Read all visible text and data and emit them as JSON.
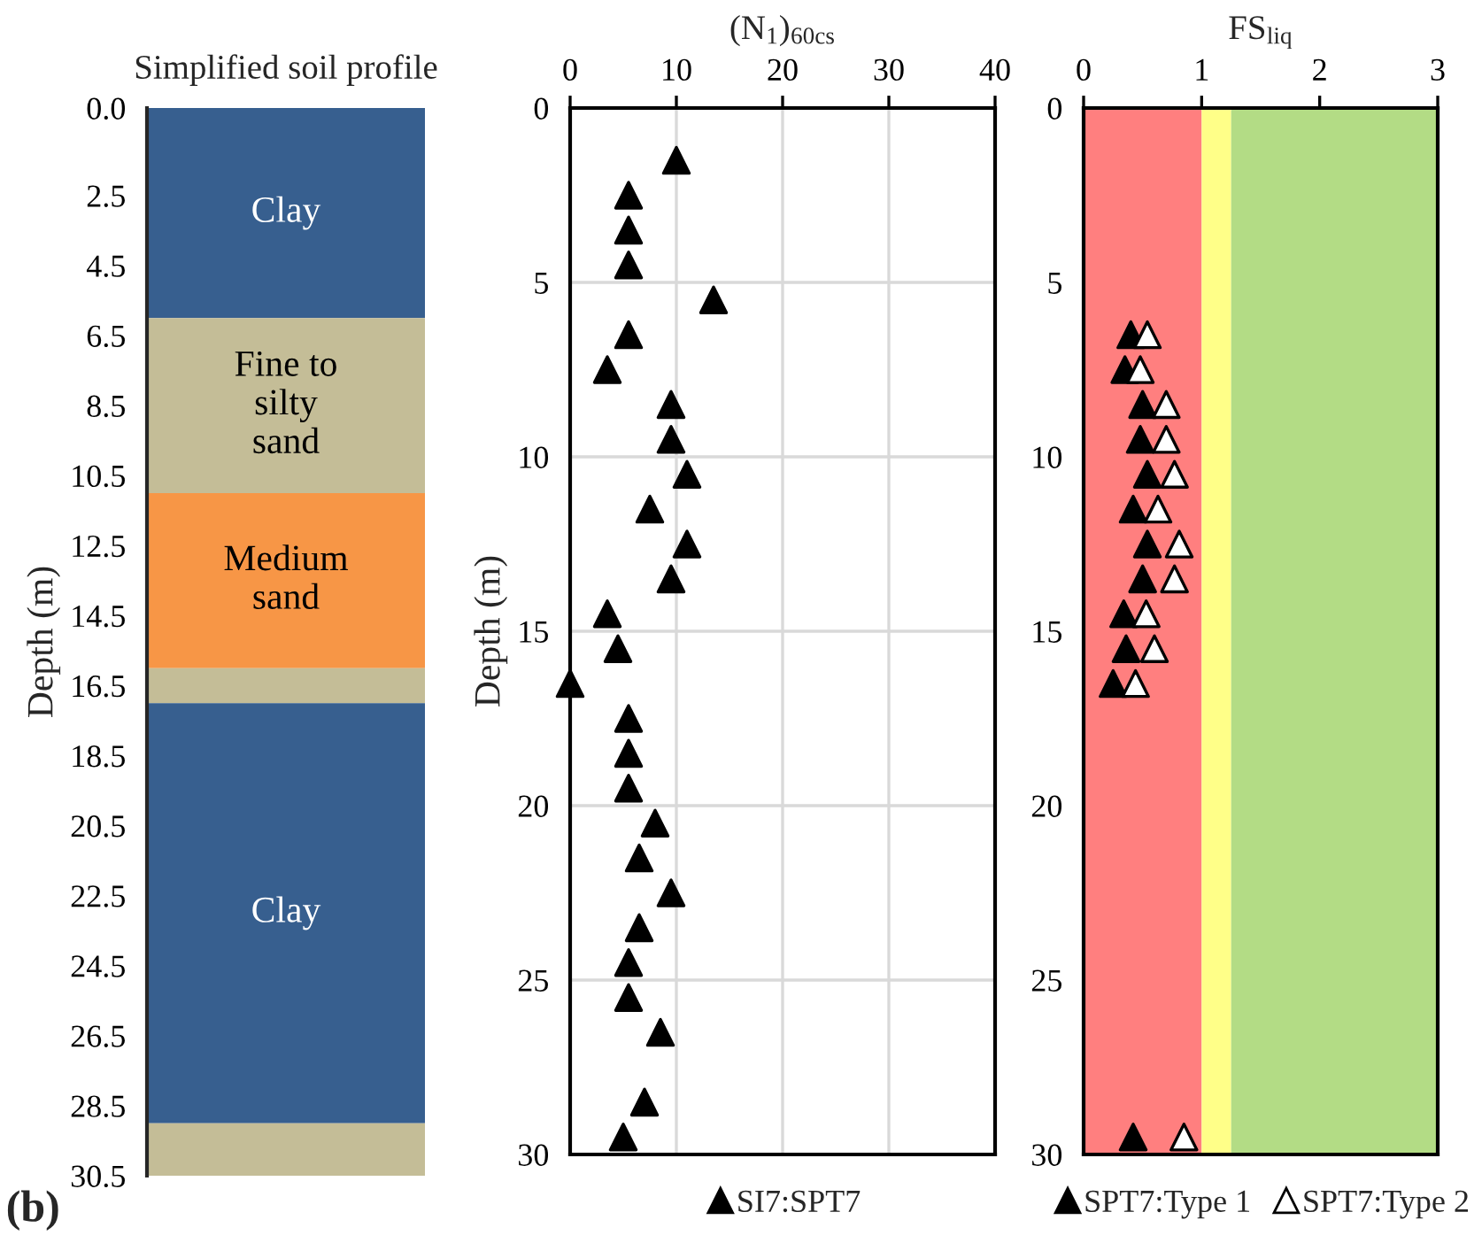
{
  "chart_data": [
    {
      "type": "bar",
      "stacked": true,
      "title": "Simplified soil profile",
      "ylabel": "Depth (m)",
      "categories": [
        null
      ],
      "tick_labels": "y",
      "ylim": [
        30.5,
        0
      ],
      "yticks": [
        {
          "value": 0,
          "label": "0.0"
        },
        2.5,
        4.5,
        6.5,
        8.5,
        10.5,
        12.5,
        14.5,
        16.5,
        18.5,
        20.5,
        22.5,
        24.5,
        26.5,
        28.5,
        30.5
      ],
      "series": [
        {
          "name": "Clay",
          "color": "#375f8f",
          "values": [
            6.0
          ]
        },
        {
          "name": "Fine to\nsilty\nsand",
          "color": "#c4bd97",
          "values": [
            5.0
          ]
        },
        {
          "name": "Medium\nsand",
          "color": "#f79646",
          "values": [
            5.0
          ]
        },
        {
          "color": "#c4bd97",
          "values": [
            1.0
          ]
        },
        {
          "name": "Clay",
          "color": "#375f8f",
          "values": [
            12.0
          ]
        },
        {
          "color": "#c4bd97",
          "values": [
            1.5
          ]
        }
      ],
      "annotations": [
        "(b)"
      ]
    },
    {
      "type": "scatter",
      "title": "(N$_{1}$)$_{60cs}$",
      "ylabel": "Depth (m)",
      "marker": "triangle",
      "grid": true,
      "legend": "bottom",
      "xlim": [
        0,
        40
      ],
      "xticks": [
        0,
        10,
        20,
        30,
        40
      ],
      "ylim": [
        30,
        0
      ],
      "yticks": [
        0,
        5,
        10,
        15,
        20,
        25,
        30
      ],
      "series": [
        {
          "name": "SI7:SPT7",
          "color": "#000000",
          "x": [
            10,
            5.5,
            5.5,
            5.5,
            13.5,
            5.5,
            3.5,
            9.5,
            9.5,
            11,
            7.5,
            11,
            9.5,
            3.5,
            4.5,
            0,
            5.5,
            5.5,
            5.5,
            8,
            6.5,
            9.5,
            6.5,
            5.5,
            5.5,
            8.5,
            7,
            5
          ],
          "values": [
            1.5,
            2.5,
            3.5,
            4.5,
            5.5,
            6.5,
            7.5,
            8.5,
            9.5,
            10.5,
            11.5,
            12.5,
            13.5,
            14.5,
            15.5,
            16.5,
            17.5,
            18.5,
            19.5,
            20.5,
            21.5,
            22.5,
            23.5,
            24.5,
            25.5,
            26.5,
            28.5,
            29.5
          ]
        }
      ]
    },
    {
      "type": "scatter",
      "title": "FS$_{liq}$",
      "marker": "triangle",
      "legend": "bottom",
      "xlim": [
        0,
        3
      ],
      "xticks": [
        0,
        1,
        2,
        3
      ],
      "ylim": [
        30,
        0
      ],
      "yticks": [
        0,
        5,
        10,
        15,
        20,
        25,
        30
      ],
      "bands": [
        {
          "axis": "x",
          "from": 0,
          "to": 1,
          "color": "#ff7f7f"
        },
        {
          "axis": "x",
          "from": 1,
          "to": 1.25,
          "color": "#ffff88"
        },
        {
          "axis": "x",
          "from": 1.25,
          "to": 3,
          "color": "#b3dc85"
        }
      ],
      "series": [
        {
          "name": "SPT7:Type 1",
          "color": "#000000",
          "x": [
            0.4,
            0.35,
            0.5,
            0.48,
            0.54,
            0.42,
            0.54,
            0.5,
            0.34,
            0.36,
            0.25,
            0.42
          ],
          "values": [
            6.5,
            7.5,
            8.5,
            9.5,
            10.5,
            11.5,
            12.5,
            13.5,
            14.5,
            15.5,
            16.5,
            29.5
          ]
        },
        {
          "name": "SPT7:Type 2",
          "color": "#ffffff",
          "x": [
            0.54,
            0.48,
            0.7,
            0.7,
            0.77,
            0.63,
            0.81,
            0.77,
            0.53,
            0.6,
            0.44,
            0.85
          ],
          "values": [
            6.5,
            7.5,
            8.5,
            9.5,
            10.5,
            11.5,
            12.5,
            13.5,
            14.5,
            15.5,
            16.5,
            29.5
          ]
        }
      ]
    }
  ]
}
